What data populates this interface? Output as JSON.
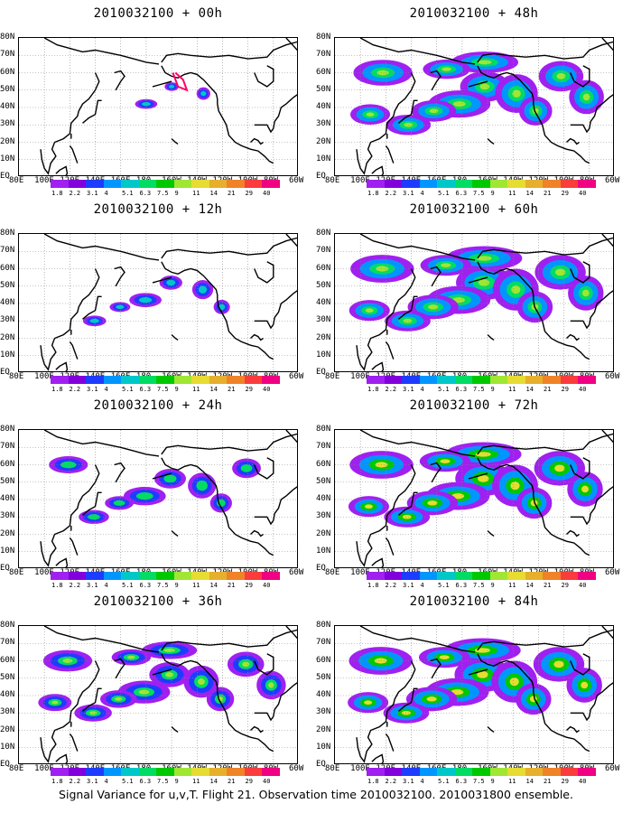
{
  "panels": [
    {
      "title": "2010032100 + 00h",
      "lead_hours": 0,
      "col": 0,
      "row": 0
    },
    {
      "title": "2010032100 + 48h",
      "lead_hours": 48,
      "col": 1,
      "row": 0
    },
    {
      "title": "2010032100 + 12h",
      "lead_hours": 12,
      "col": 0,
      "row": 1
    },
    {
      "title": "2010032100 + 60h",
      "lead_hours": 60,
      "col": 1,
      "row": 1
    },
    {
      "title": "2010032100 + 24h",
      "lead_hours": 24,
      "col": 0,
      "row": 2
    },
    {
      "title": "2010032100 + 72h",
      "lead_hours": 72,
      "col": 1,
      "row": 2
    },
    {
      "title": "2010032100 + 36h",
      "lead_hours": 36,
      "col": 0,
      "row": 3
    },
    {
      "title": "2010032100 + 84h",
      "lead_hours": 84,
      "col": 1,
      "row": 3
    }
  ],
  "lat_labels": [
    "80N",
    "70N",
    "60N",
    "50N",
    "40N",
    "30N",
    "20N",
    "10N",
    "EQ"
  ],
  "lon_labels": [
    "80E",
    "100E",
    "120E",
    "140E",
    "160E",
    "180",
    "160W",
    "140W",
    "120W",
    "100W",
    "80W",
    "60W"
  ],
  "colorbar": {
    "labels": [
      "1.8",
      "2.2",
      "3.1",
      "4",
      "5.1",
      "6.3",
      "7.5",
      "9",
      "11",
      "14",
      "21",
      "29",
      "40"
    ],
    "colors": [
      "#a020f0",
      "#8200dc",
      "#1e3cff",
      "#0096ff",
      "#00c8c8",
      "#00dc64",
      "#00c800",
      "#a0e632",
      "#e6dc32",
      "#e6af2d",
      "#f08228",
      "#fa3c3c",
      "#f00082"
    ]
  },
  "footer": "Signal Variance for u,v,T. Flight 21. Observation time 2010032100. 2010031800 ensemble."
}
